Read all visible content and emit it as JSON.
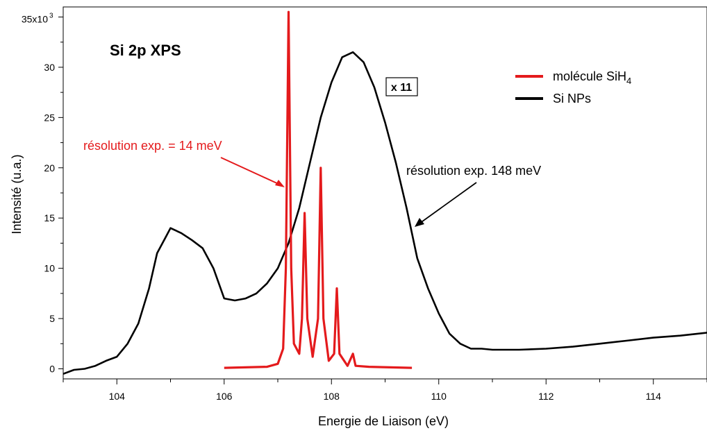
{
  "chart_data": {
    "type": "line",
    "title": "Si 2p XPS",
    "xlabel": "Energie de Liaison (eV)",
    "ylabel": "Intensité (u.a.)",
    "xlim": [
      103.0,
      115.0
    ],
    "ylim": [
      -1000,
      36000
    ],
    "x_ticks": [
      104,
      106,
      108,
      110,
      112,
      114
    ],
    "y_ticks": [
      0,
      5000,
      10000,
      15000,
      20000,
      25000,
      30000,
      35000
    ],
    "y_tick_labels": [
      "0",
      "5",
      "10",
      "15",
      "20",
      "25",
      "30",
      "35x10"
    ],
    "y_tick_exponent": "3",
    "legend_position": "top-right",
    "scale_box_label": "x 11",
    "legend": [
      {
        "label_main": "molécule SiH",
        "label_sub": "4",
        "color": "#e41a1c"
      },
      {
        "label_main": "Si NPs",
        "label_sub": "",
        "color": "#000000"
      }
    ],
    "annotations": [
      {
        "text": "résolution exp. = 14 meV",
        "color": "#e41a1c"
      },
      {
        "text": "résolution exp. 148 meV",
        "color": "#000000"
      }
    ],
    "series": [
      {
        "name": "Si NPs",
        "color": "#000000",
        "points": [
          [
            103.0,
            -500
          ],
          [
            103.2,
            -100
          ],
          [
            103.4,
            0
          ],
          [
            103.6,
            300
          ],
          [
            103.8,
            800
          ],
          [
            104.0,
            1200
          ],
          [
            104.2,
            2500
          ],
          [
            104.4,
            4500
          ],
          [
            104.6,
            8000
          ],
          [
            104.75,
            11500
          ],
          [
            104.9,
            13000
          ],
          [
            105.0,
            14000
          ],
          [
            105.2,
            13500
          ],
          [
            105.4,
            12800
          ],
          [
            105.6,
            12000
          ],
          [
            105.8,
            10000
          ],
          [
            106.0,
            7000
          ],
          [
            106.2,
            6800
          ],
          [
            106.4,
            7000
          ],
          [
            106.6,
            7500
          ],
          [
            106.8,
            8500
          ],
          [
            107.0,
            10000
          ],
          [
            107.2,
            12500
          ],
          [
            107.4,
            16000
          ],
          [
            107.6,
            20500
          ],
          [
            107.8,
            25000
          ],
          [
            108.0,
            28500
          ],
          [
            108.2,
            31000
          ],
          [
            108.4,
            31500
          ],
          [
            108.6,
            30500
          ],
          [
            108.8,
            28000
          ],
          [
            109.0,
            24500
          ],
          [
            109.2,
            20500
          ],
          [
            109.4,
            16000
          ],
          [
            109.6,
            11000
          ],
          [
            109.8,
            8000
          ],
          [
            110.0,
            5500
          ],
          [
            110.2,
            3500
          ],
          [
            110.4,
            2500
          ],
          [
            110.6,
            2000
          ],
          [
            110.8,
            2000
          ],
          [
            111.0,
            1900
          ],
          [
            111.5,
            1900
          ],
          [
            112.0,
            2000
          ],
          [
            112.5,
            2200
          ],
          [
            113.0,
            2500
          ],
          [
            113.5,
            2800
          ],
          [
            114.0,
            3100
          ],
          [
            114.5,
            3300
          ],
          [
            115.0,
            3600
          ]
        ]
      },
      {
        "name": "molécule SiH4",
        "color": "#e41a1c",
        "points": [
          [
            106.0,
            100
          ],
          [
            106.8,
            200
          ],
          [
            107.0,
            500
          ],
          [
            107.1,
            2000
          ],
          [
            107.15,
            10000
          ],
          [
            107.2,
            35500
          ],
          [
            107.25,
            10000
          ],
          [
            107.3,
            2500
          ],
          [
            107.4,
            1500
          ],
          [
            107.45,
            5000
          ],
          [
            107.5,
            15500
          ],
          [
            107.55,
            5000
          ],
          [
            107.65,
            1200
          ],
          [
            107.75,
            5000
          ],
          [
            107.8,
            20000
          ],
          [
            107.85,
            5000
          ],
          [
            107.95,
            800
          ],
          [
            108.05,
            1500
          ],
          [
            108.1,
            8000
          ],
          [
            108.15,
            1500
          ],
          [
            108.3,
            300
          ],
          [
            108.4,
            1500
          ],
          [
            108.45,
            300
          ],
          [
            108.7,
            200
          ],
          [
            109.5,
            100
          ]
        ]
      }
    ]
  }
}
